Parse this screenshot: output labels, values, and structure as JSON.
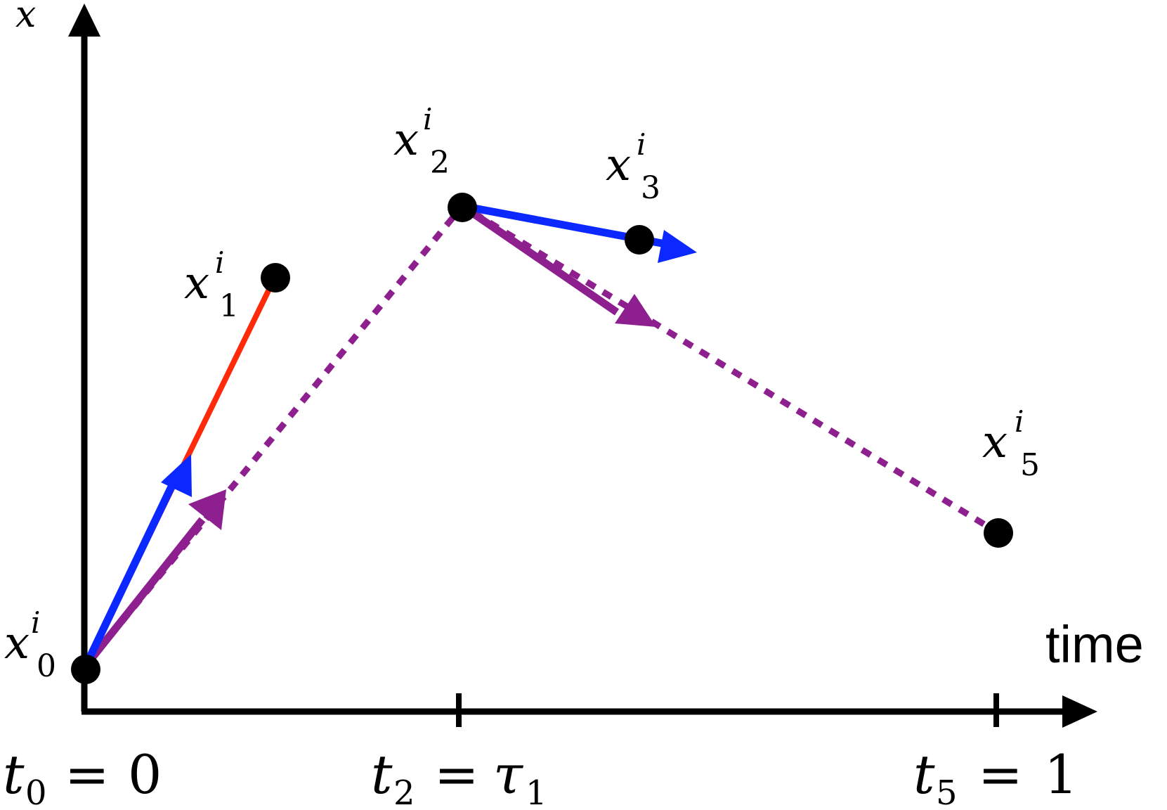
{
  "axes": {
    "y_axis_label": "x",
    "x_axis_label": "time"
  },
  "points": [
    {
      "id": "x0",
      "base": "x",
      "sub": "0",
      "sup": "i"
    },
    {
      "id": "x1",
      "base": "x",
      "sub": "1",
      "sup": "i"
    },
    {
      "id": "x2",
      "base": "x",
      "sub": "2",
      "sup": "i"
    },
    {
      "id": "x3",
      "base": "x",
      "sub": "3",
      "sup": "i"
    },
    {
      "id": "x5",
      "base": "x",
      "sub": "5",
      "sup": "i"
    }
  ],
  "ticks": [
    {
      "id": "t0",
      "base": "t",
      "sub": "0",
      "eq": "=",
      "rhs": "0",
      "rhs_sub": ""
    },
    {
      "id": "t2",
      "base": "t",
      "sub": "2",
      "eq": "=",
      "rhs": "τ",
      "rhs_sub": "1"
    },
    {
      "id": "t5",
      "base": "t",
      "sub": "5",
      "eq": "=",
      "rhs": "1",
      "rhs_sub": ""
    }
  ],
  "colors": {
    "axis": "#000000",
    "red_segment": "#ff2a0a",
    "blue_arrow": "#0a28ff",
    "purple_path": "#8e1f8e",
    "point": "#000000"
  }
}
